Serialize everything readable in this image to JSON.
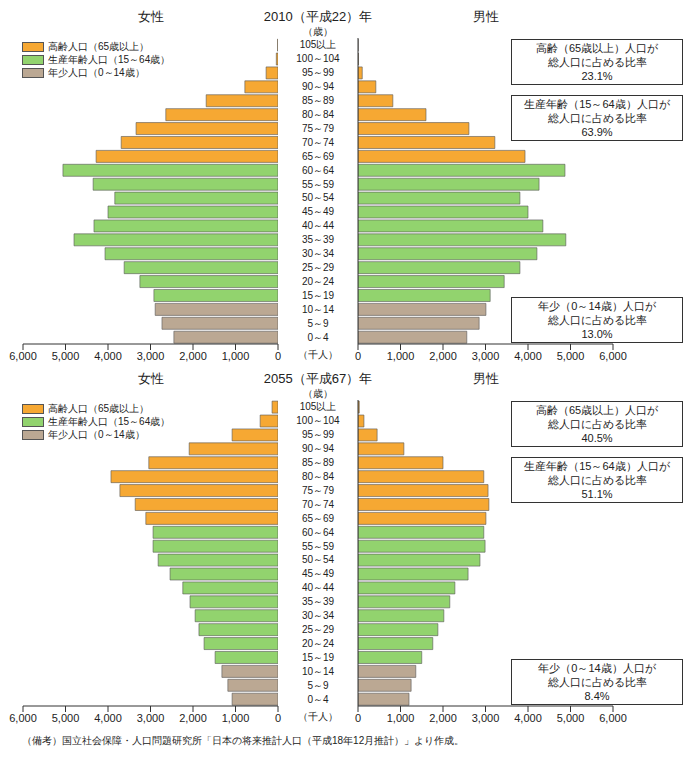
{
  "chart_data": [
    {
      "type": "bar",
      "orientation": "horizontal",
      "stacked": true,
      "legend": "upper left",
      "title": "2010（平成22）年",
      "xlabel": "（千人）",
      "ylabel": "（歳）",
      "categories": [
        "105以上",
        "100～104",
        "95～99",
        "90～94",
        "85～89",
        "80～84",
        "75～79",
        "70～74",
        "65～69",
        "60～64",
        "55～59",
        "50～54",
        "45～49",
        "40～44",
        "35～39",
        "30～34",
        "25～29",
        "20～24",
        "15～19",
        "10～14",
        "5～9",
        "0～4"
      ],
      "xlim": [
        0,
        6000
      ],
      "xticks": [
        0,
        {
          "value": 1000,
          "label": "1,000"
        },
        {
          "value": 2000,
          "label": "2,000"
        },
        {
          "value": 3000,
          "label": "3,000"
        },
        {
          "value": 4000,
          "label": "4,000"
        },
        {
          "value": 5000,
          "label": "5,000"
        },
        {
          "value": 6000,
          "label": "6,000"
        }
      ],
      "panels": [
        {
          "name": "女性",
          "series": [
            {
              "name": "高齢人口（65歳以上）",
              "color": "#f6a833",
              "values": [
                10,
                40,
                280,
                780,
                1690,
                2640,
                3340,
                3690,
                4280,
                null,
                null,
                null,
                null,
                null,
                null,
                null,
                null,
                null,
                null,
                null,
                null,
                null
              ]
            },
            {
              "name": "生産年齢人口（15～64歳）",
              "color": "#92d36e",
              "values": [
                null,
                null,
                null,
                null,
                null,
                null,
                null,
                null,
                null,
                5060,
                4350,
                3840,
                4000,
                4330,
                4800,
                4070,
                3620,
                3250,
                2920,
                null,
                null,
                null
              ]
            },
            {
              "name": "年少人口（0～14歳）",
              "color": "#bba893",
              "values": [
                null,
                null,
                null,
                null,
                null,
                null,
                null,
                null,
                null,
                null,
                null,
                null,
                null,
                null,
                null,
                null,
                null,
                null,
                null,
                2890,
                2730,
                2450
              ]
            }
          ]
        },
        {
          "name": "男性",
          "series": [
            {
              "name": "高齢人口（65歳以上）",
              "color": "#f6a833",
              "values": [
                2,
                10,
                100,
                420,
                820,
                1600,
                2610,
                3220,
                3930,
                null,
                null,
                null,
                null,
                null,
                null,
                null,
                null,
                null,
                null,
                null,
                null,
                null
              ]
            },
            {
              "name": "生産年齢人口（15～64歳）",
              "color": "#92d36e",
              "values": [
                null,
                null,
                null,
                null,
                null,
                null,
                null,
                null,
                null,
                4870,
                4260,
                3810,
                4000,
                4350,
                4890,
                4210,
                3810,
                3440,
                3110,
                null,
                null,
                null
              ]
            },
            {
              "name": "年少人口（0～14歳）",
              "color": "#bba893",
              "values": [
                null,
                null,
                null,
                null,
                null,
                null,
                null,
                null,
                null,
                null,
                null,
                null,
                null,
                null,
                null,
                null,
                null,
                null,
                null,
                3010,
                2850,
                2560
              ]
            }
          ]
        }
      ],
      "annotations": [
        [
          "高齢（65歳以上）人口が",
          "総人口に占める比率",
          "23.1%"
        ],
        [
          "生産年齢（15～64歳）人口が",
          "総人口に占める比率",
          "63.9%"
        ],
        [
          "年少（0～14歳）人口が",
          "総人口に占める比率",
          "13.0%"
        ]
      ]
    },
    {
      "type": "bar",
      "orientation": "horizontal",
      "stacked": true,
      "legend": "upper left",
      "title": "2055（平成67）年",
      "xlabel": "（千人）",
      "ylabel": "（歳）",
      "categories": [
        "105以上",
        "100～104",
        "95～99",
        "90～94",
        "85～89",
        "80～84",
        "75～79",
        "70～74",
        "65～69",
        "60～64",
        "55～59",
        "50～54",
        "45～49",
        "40～44",
        "35～39",
        "30～34",
        "25～29",
        "20～24",
        "15～19",
        "10～14",
        "5～9",
        "0～4"
      ],
      "xlim": [
        0,
        6000
      ],
      "xticks": [
        0,
        {
          "value": 1000,
          "label": "1,000"
        },
        {
          "value": 2000,
          "label": "2,000"
        },
        {
          "value": 3000,
          "label": "3,000"
        },
        {
          "value": 4000,
          "label": "4,000"
        },
        {
          "value": 5000,
          "label": "5,000"
        },
        {
          "value": 6000,
          "label": "6,000"
        }
      ],
      "panels": [
        {
          "name": "女性",
          "series": [
            {
              "name": "高齢人口（65歳以上）",
              "color": "#f6a833",
              "values": [
                140,
                420,
                1080,
                2090,
                3040,
                3930,
                3720,
                3360,
                3110,
                null,
                null,
                null,
                null,
                null,
                null,
                null,
                null,
                null,
                null,
                null,
                null,
                null
              ]
            },
            {
              "name": "生産年齢人口（15～64歳）",
              "color": "#92d36e",
              "values": [
                null,
                null,
                null,
                null,
                null,
                null,
                null,
                null,
                null,
                2940,
                2940,
                2820,
                2540,
                2240,
                2070,
                1950,
                1860,
                1740,
                1480,
                null,
                null,
                null
              ]
            },
            {
              "name": "年少人口（0～14歳）",
              "color": "#bba893",
              "values": [
                null,
                null,
                null,
                null,
                null,
                null,
                null,
                null,
                null,
                null,
                null,
                null,
                null,
                null,
                null,
                null,
                null,
                null,
                null,
                1320,
                1180,
                1080
              ]
            }
          ]
        },
        {
          "name": "男性",
          "series": [
            {
              "name": "高齢人口（65歳以上）",
              "color": "#f6a833",
              "values": [
                30,
                140,
                450,
                1080,
                2000,
                2960,
                3060,
                3080,
                3010,
                null,
                null,
                null,
                null,
                null,
                null,
                null,
                null,
                null,
                null,
                null,
                null,
                null
              ]
            },
            {
              "name": "生産年齢人口（15～64歳）",
              "color": "#92d36e",
              "values": [
                null,
                null,
                null,
                null,
                null,
                null,
                null,
                null,
                null,
                2960,
                2990,
                2870,
                2590,
                2280,
                2160,
                2020,
                1880,
                1760,
                1500,
                null,
                null,
                null
              ]
            },
            {
              "name": "年少人口（0～14歳）",
              "color": "#bba893",
              "values": [
                null,
                null,
                null,
                null,
                null,
                null,
                null,
                null,
                null,
                null,
                null,
                null,
                null,
                null,
                null,
                null,
                null,
                null,
                null,
                1360,
                1250,
                1200
              ]
            }
          ]
        }
      ],
      "annotations": [
        [
          "高齢（65歳以上）人口が",
          "総人口に占める比率",
          "40.5%"
        ],
        [
          "生産年齢（15～64歳）人口が",
          "総人口に占める比率",
          "51.1%"
        ],
        [
          "年少（0～14歳）人口が",
          "総人口に占める比率",
          "8.4%"
        ]
      ]
    }
  ],
  "note": "（備考）国立社会保障・人口問題研究所「日本の将来推計人口（平成18年12月推計）」より作成。"
}
